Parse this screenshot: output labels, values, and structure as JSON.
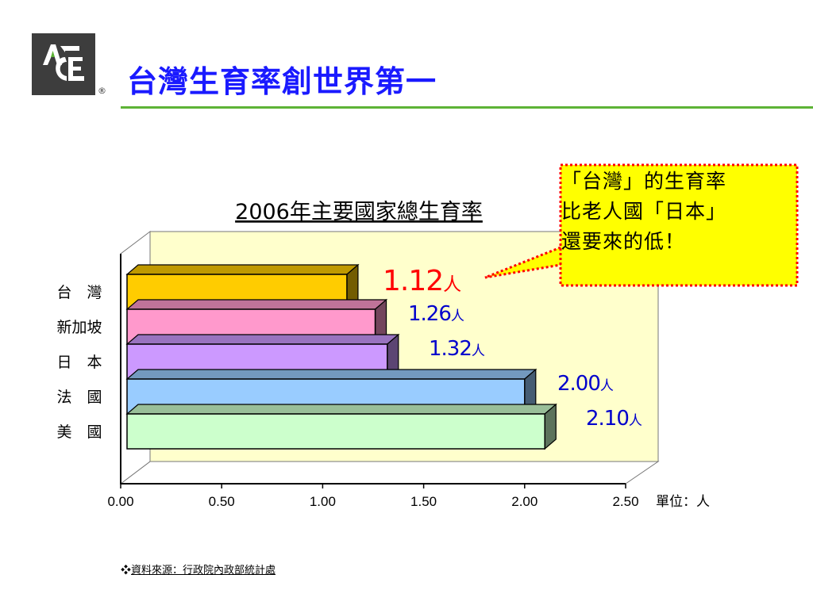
{
  "slide": {
    "title": "台灣生育率創世界第一",
    "logo_text": "ACE",
    "logo_mark": "®",
    "source_bullet": "❖",
    "source": "資料來源：行政院內政部統計處"
  },
  "callout": {
    "lines": [
      "「台灣」的生育率",
      "比老人國「日本」",
      "還要來的低！"
    ]
  },
  "colors": {
    "title": "#1a1aff",
    "rule": "#5db336",
    "plot_bg": "#ffffcc",
    "callout_bg": "#ffff00",
    "callout_border": "#ff0000",
    "label_red": "#ff0000",
    "label_blue": "#0000cc"
  },
  "chart_data": {
    "type": "bar",
    "orientation": "horizontal",
    "title": "2006年主要國家總生育率",
    "categories": [
      "台　灣",
      "新加坡",
      "日　本",
      "法　國",
      "美　國"
    ],
    "values": [
      1.12,
      1.26,
      1.32,
      2.0,
      2.1
    ],
    "value_labels": [
      "1.12",
      "1.26",
      "1.32",
      "2.00",
      "2.10"
    ],
    "value_suffix": "人",
    "bar_colors": [
      "#ffcc00",
      "#ff99cc",
      "#cc99ff",
      "#99ccff",
      "#ccffcc"
    ],
    "xlim": [
      0,
      2.5
    ],
    "xticks": [
      "0.00",
      "0.50",
      "1.00",
      "1.50",
      "2.00",
      "2.50"
    ],
    "unit_label": "單位：人",
    "three_d": true
  }
}
